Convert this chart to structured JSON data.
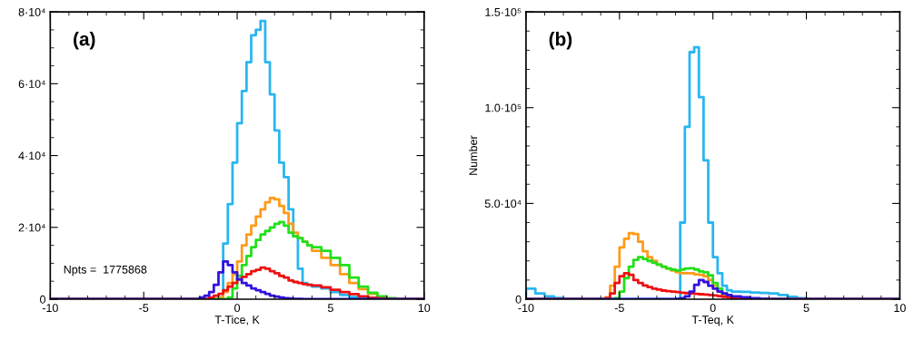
{
  "chart_data": [
    {
      "type": "histogram",
      "xlabel": "T-Tice, K",
      "annotations": [
        "(a)",
        "Npts =  1775868"
      ],
      "xlim": [
        -10,
        10
      ],
      "xticks": [
        -10,
        -5,
        0,
        5,
        10
      ],
      "ylim": [
        0,
        80000
      ],
      "yticks": [
        0,
        {
          "value": 20000,
          "label": "2·10⁴"
        },
        {
          "value": 40000,
          "label": "4·10⁴"
        },
        {
          "value": 60000,
          "label": "6·10⁴"
        },
        {
          "value": 80000,
          "label": "8·10⁴"
        }
      ],
      "grid": false,
      "bins": [
        -10,
        -2,
        -1.75,
        -1.5,
        -1.25,
        -1,
        -0.75,
        -0.5,
        -0.25,
        0,
        0.25,
        0.5,
        0.75,
        1,
        1.25,
        1.5,
        1.75,
        2,
        2.25,
        2.5,
        2.75,
        3,
        3.25,
        3.5,
        3.75,
        4,
        4.5,
        5,
        5.5,
        6,
        6.5,
        7,
        7.5,
        8,
        8.5,
        9,
        10
      ],
      "series": [
        {
          "color": "#29b6f0",
          "values": [
            0,
            0,
            0,
            0,
            0,
            500,
            15500,
            26500,
            38000,
            49000,
            58000,
            66000,
            73500,
            75000,
            77500,
            66000,
            57000,
            47000,
            38000,
            34000,
            25000,
            17500,
            8500,
            4500,
            4000,
            3500,
            3000,
            2000,
            1200,
            600,
            300,
            0,
            0,
            0,
            0,
            0
          ]
        },
        {
          "color": "#ff9a1a",
          "values": [
            0,
            0,
            0,
            0,
            0,
            500,
            2000,
            4500,
            7000,
            10500,
            15000,
            18000,
            20500,
            23000,
            25000,
            27000,
            28200,
            27800,
            26000,
            24000,
            21000,
            18500,
            17000,
            16000,
            15000,
            13500,
            11500,
            9500,
            7000,
            4500,
            2800,
            1500,
            600,
            200,
            0,
            0
          ]
        },
        {
          "color": "#22e01a",
          "values": [
            0,
            0,
            0,
            0,
            0,
            0,
            0,
            500,
            3000,
            6500,
            9500,
            12000,
            14500,
            16500,
            18000,
            19000,
            20000,
            21000,
            21500,
            20500,
            18500,
            17500,
            17000,
            16000,
            15000,
            14500,
            13500,
            11500,
            9500,
            6000,
            3500,
            1800,
            800,
            300,
            0,
            0
          ]
        },
        {
          "color": "#ee1111",
          "values": [
            0,
            0,
            0,
            500,
            1000,
            1500,
            2500,
            3500,
            4500,
            5500,
            6200,
            7000,
            7800,
            8200,
            8800,
            8500,
            7800,
            7200,
            6500,
            6000,
            5200,
            4800,
            4500,
            4200,
            4000,
            3800,
            3300,
            2600,
            2000,
            1400,
            800,
            400,
            200,
            0,
            0,
            0
          ]
        },
        {
          "color": "#3311dd",
          "values": [
            0,
            500,
            1000,
            2000,
            4000,
            7500,
            10500,
            9500,
            7500,
            5500,
            4500,
            3800,
            3000,
            2500,
            2000,
            1500,
            1000,
            700,
            500,
            300,
            200,
            100,
            100,
            0,
            0,
            0,
            0,
            0,
            0,
            0,
            0,
            0,
            0,
            0,
            0,
            0
          ]
        }
      ]
    },
    {
      "type": "histogram",
      "xlabel": "T-Teq, K",
      "ylabel": "Number",
      "annotations": [
        "(b)"
      ],
      "xlim": [
        -10,
        10
      ],
      "xticks": [
        -10,
        -5,
        0,
        5,
        10
      ],
      "ylim": [
        0,
        150000
      ],
      "yticks": [
        0,
        {
          "value": 50000,
          "label": "5.0·10⁴"
        },
        {
          "value": 100000,
          "label": "1.0·10⁵"
        },
        {
          "value": 150000,
          "label": "1.5·10⁵"
        }
      ],
      "grid": false,
      "bins": [
        -10,
        -9.5,
        -9,
        -8.5,
        -8,
        -7,
        -6,
        -5.75,
        -5.5,
        -5.25,
        -5,
        -4.75,
        -4.5,
        -4.25,
        -4,
        -3.75,
        -3.5,
        -3.25,
        -3,
        -2.75,
        -2.5,
        -2.25,
        -2,
        -1.75,
        -1.5,
        -1.25,
        -1,
        -0.75,
        -0.5,
        -0.25,
        0,
        0.25,
        0.5,
        0.75,
        1,
        1.5,
        2,
        2.5,
        3,
        3.5,
        4,
        4.5,
        5,
        10
      ],
      "series": [
        {
          "color": "#29b6f0",
          "values": [
            5500,
            3000,
            1500,
            700,
            200,
            0,
            0,
            0,
            0,
            0,
            0,
            0,
            0,
            0,
            0,
            0,
            0,
            0,
            0,
            0,
            0,
            0,
            0,
            40000,
            90000,
            129000,
            131500,
            105500,
            72500,
            40000,
            22000,
            13500,
            7000,
            4700,
            4000,
            3800,
            3500,
            3300,
            3000,
            2200,
            1200,
            500,
            0
          ]
        },
        {
          "color": "#ff9a1a",
          "values": [
            0,
            0,
            0,
            0,
            0,
            0,
            0,
            1000,
            7000,
            17000,
            27000,
            31500,
            34500,
            34000,
            30000,
            25000,
            22000,
            20000,
            18000,
            17000,
            16000,
            15000,
            14200,
            13500,
            13500,
            13500,
            13000,
            12700,
            12000,
            10000,
            7000,
            4000,
            2500,
            1500,
            800,
            300,
            0,
            0,
            0,
            0,
            0,
            0,
            0
          ]
        },
        {
          "color": "#22e01a",
          "values": [
            0,
            0,
            0,
            0,
            0,
            0,
            0,
            0,
            0,
            500,
            4000,
            11000,
            17000,
            20500,
            22000,
            21000,
            20000,
            19000,
            18000,
            17000,
            16000,
            15500,
            15000,
            15500,
            16000,
            16200,
            15500,
            14500,
            14000,
            12500,
            8500,
            5500,
            3000,
            1500,
            600,
            200,
            0,
            0,
            0,
            0,
            0,
            0,
            0
          ]
        },
        {
          "color": "#ee1111",
          "values": [
            0,
            0,
            0,
            0,
            0,
            0,
            0,
            500,
            3000,
            8500,
            12000,
            13500,
            12700,
            10000,
            8500,
            7200,
            6300,
            5500,
            5000,
            4500,
            4200,
            4000,
            3700,
            3400,
            3200,
            3000,
            2800,
            2600,
            2400,
            2200,
            2000,
            1600,
            1200,
            1000,
            500,
            200,
            0,
            0,
            0,
            0,
            0,
            0,
            0
          ]
        },
        {
          "color": "#3311dd",
          "values": [
            0,
            0,
            0,
            0,
            0,
            0,
            0,
            0,
            0,
            0,
            0,
            0,
            0,
            0,
            0,
            0,
            0,
            0,
            0,
            0,
            0,
            0,
            200,
            500,
            1500,
            4000,
            7500,
            10000,
            9000,
            7000,
            5500,
            4000,
            3000,
            2200,
            1500,
            1000,
            500,
            200,
            0,
            0,
            0,
            0,
            0
          ]
        }
      ]
    }
  ]
}
